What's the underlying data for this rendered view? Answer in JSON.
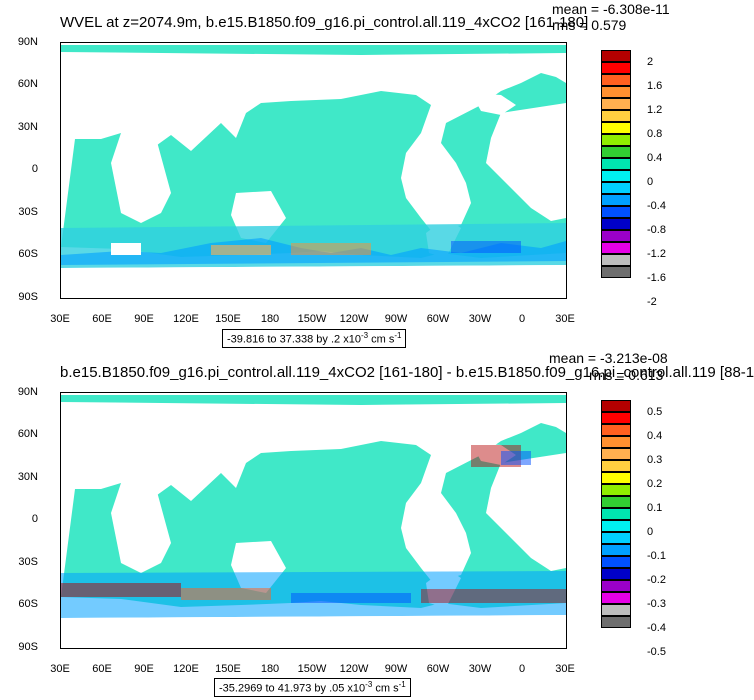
{
  "colors": {
    "levels": [
      "#6e6e6e",
      "#bdbdbd",
      "#e600e6",
      "#9a00c8",
      "#0000c8",
      "#0050ff",
      "#00a0ff",
      "#00d0ff",
      "#00f0f0",
      "#00e6b0",
      "#32cd32",
      "#90ee00",
      "#ffff00",
      "#ffd040",
      "#ffb050",
      "#ff9030",
      "#ff6020",
      "#ff0000",
      "#b40000"
    ],
    "ocean_base": "#40e8c8"
  },
  "panels": [
    {
      "title": "WVEL at z=2074.9m, b.e15.B1850.f09_g16.pi_control.all.119_4xCO2 [161-180]",
      "mean": "mean = -6.308e-11",
      "rms": "rms = 0.579",
      "lat_labels": [
        "90N",
        "60N",
        "30N",
        "0",
        "30S",
        "60S",
        "90S"
      ],
      "lon_labels": [
        "30E",
        "60E",
        "90E",
        "120E",
        "150E",
        "180",
        "150W",
        "120W",
        "90W",
        "60W",
        "30W",
        "0",
        "30E"
      ],
      "range_text": "-39.816 to 37.338 by .2 x10",
      "range_exp": "-3",
      "range_unit": " cm s",
      "range_unit_exp": "-1",
      "colorbar_labels": [
        "2",
        "1.6",
        "1.2",
        "0.8",
        "0.4",
        "0",
        "-0.4",
        "-0.8",
        "-1.2",
        "-1.6",
        "-2"
      ]
    },
    {
      "title": "b.e15.B1850.f09_g16.pi_control.all.119_4xCO2 [161-180] - b.e15.B1850.f09_g16.pi_control.all.119 [88-1",
      "mean": "mean = -3.213e-08",
      "rms": "rms = 0.613",
      "lat_labels": [
        "90N",
        "60N",
        "30N",
        "0",
        "30S",
        "60S",
        "90S"
      ],
      "lon_labels": [
        "30E",
        "60E",
        "90E",
        "120E",
        "150E",
        "180",
        "150W",
        "120W",
        "90W",
        "60W",
        "30W",
        "0",
        "30E"
      ],
      "range_text": "-35.2969 to 41.973 by .05 x10",
      "range_exp": "-3",
      "range_unit": " cm s",
      "range_unit_exp": "-1",
      "colorbar_labels": [
        "0.5",
        "0.4",
        "0.3",
        "0.2",
        "0.1",
        "0",
        "-0.1",
        "-0.2",
        "-0.3",
        "-0.4",
        "-0.5"
      ]
    }
  ]
}
